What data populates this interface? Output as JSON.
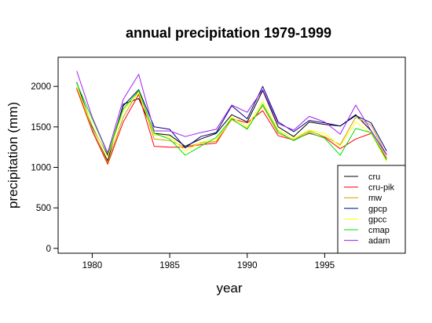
{
  "chart_data": {
    "type": "line",
    "title": "annual precipitation 1979-1999",
    "xlabel": "year",
    "ylabel": "precipitation (mm)",
    "x": [
      1979,
      1980,
      1981,
      1982,
      1983,
      1984,
      1985,
      1986,
      1987,
      1988,
      1989,
      1990,
      1991,
      1992,
      1993,
      1994,
      1995,
      1996,
      1997,
      1998,
      1999
    ],
    "xlim": [
      1977.8,
      2000.2
    ],
    "ylim": [
      -60,
      2360
    ],
    "xticks": [
      1980,
      1985,
      1990,
      1995
    ],
    "yticks": [
      0,
      500,
      1000,
      1500,
      2000
    ],
    "grid": false,
    "legend_position": "bottom-right",
    "series": [
      {
        "name": "cru",
        "color": "#000000",
        "values": [
          1980,
          1460,
          1080,
          1780,
          1850,
          1420,
          1400,
          1260,
          1350,
          1420,
          1650,
          1560,
          1950,
          1500,
          1380,
          1560,
          1530,
          1510,
          1650,
          1450,
          1150
        ]
      },
      {
        "name": "cru-pik",
        "color": "#ff0000",
        "values": [
          1970,
          1450,
          1040,
          1560,
          1900,
          1260,
          1250,
          1250,
          1280,
          1300,
          1600,
          1550,
          1700,
          1390,
          1340,
          1420,
          1370,
          1230,
          1350,
          1420,
          1110
        ]
      },
      {
        "name": "mw",
        "color": "#c8a000",
        "values": [
          1990,
          1470,
          1060,
          1620,
          1950,
          1350,
          1330,
          1250,
          1300,
          1320,
          1590,
          1480,
          1760,
          1420,
          1340,
          1450,
          1380,
          1280,
          1620,
          1520,
          1150
        ]
      },
      {
        "name": "gpcp",
        "color": "#000080",
        "values": [
          2050,
          1500,
          1150,
          1760,
          1960,
          1500,
          1470,
          1240,
          1380,
          1430,
          1760,
          1600,
          2000,
          1560,
          1440,
          1580,
          1550,
          1510,
          1640,
          1550,
          1200
        ]
      },
      {
        "name": "gpcc",
        "color": "#ffff00",
        "values": [
          2000,
          1520,
          1130,
          1700,
          1920,
          1400,
          1380,
          1200,
          1310,
          1340,
          1620,
          1500,
          1820,
          1460,
          1360,
          1460,
          1420,
          1260,
          1560,
          1420,
          1070
        ]
      },
      {
        "name": "cmap",
        "color": "#00e000",
        "values": [
          2040,
          1600,
          1170,
          1720,
          1950,
          1420,
          1350,
          1150,
          1260,
          1370,
          1600,
          1470,
          1780,
          1440,
          1330,
          1430,
          1360,
          1150,
          1480,
          1430,
          1090
        ]
      },
      {
        "name": "adam",
        "color": "#a020f0",
        "values": [
          2190,
          1620,
          1180,
          1840,
          2150,
          1450,
          1450,
          1380,
          1430,
          1470,
          1770,
          1680,
          1960,
          1540,
          1460,
          1630,
          1560,
          1410,
          1770,
          1450,
          1160
        ]
      }
    ]
  }
}
